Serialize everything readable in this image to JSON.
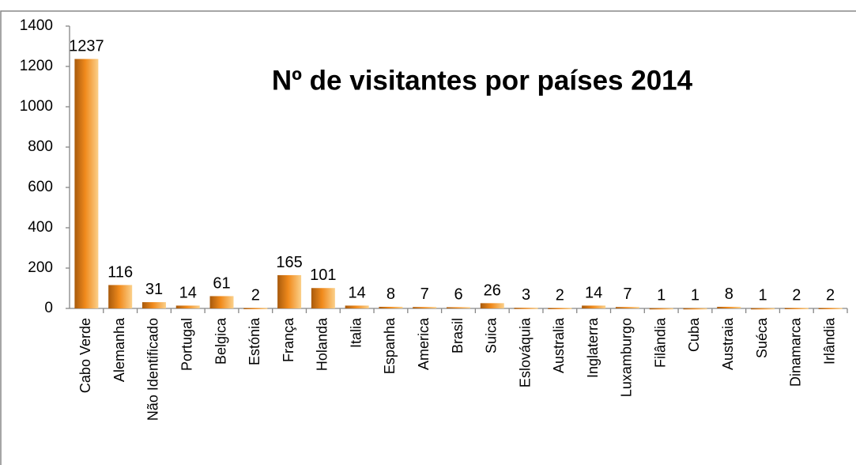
{
  "chart_data": {
    "type": "bar",
    "title": "Nº de visitantes por países  2014",
    "categories": [
      "Cabo Verde",
      "Alemanha",
      "Não Identificado",
      "Portugal",
      "Belgica",
      "Estónia",
      "França",
      "Holanda",
      "Italia",
      "Espanha",
      "America",
      "Brasil",
      "Suica",
      "Eslováquia",
      "Australia",
      "Inglaterra",
      "Luxamburgo",
      "Filândia",
      "Cuba",
      "Austraia",
      "Suéca",
      "Dinamarca",
      "Irlândia"
    ],
    "values": [
      1237,
      116,
      31,
      14,
      61,
      2,
      165,
      101,
      14,
      8,
      7,
      6,
      26,
      3,
      2,
      14,
      7,
      1,
      1,
      8,
      1,
      2,
      2
    ],
    "color": "#f08a1c",
    "ylim": [
      0,
      1400
    ],
    "yticks": [
      0,
      200,
      400,
      600,
      800,
      1000,
      1200,
      1400
    ],
    "grid": false
  }
}
